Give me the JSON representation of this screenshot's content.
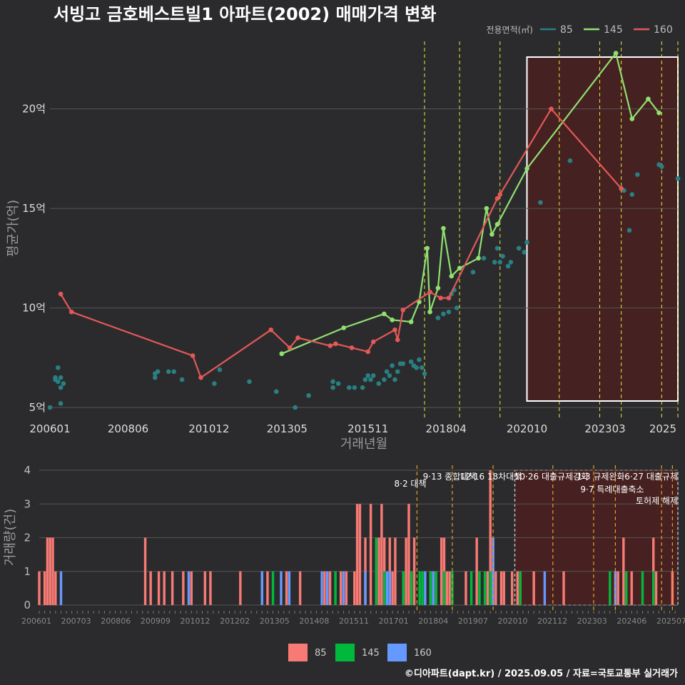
{
  "title": "서빙고 금호베스트빌1 아파트(2002) 매매가격 변화",
  "footer": "©디아파트(dapt.kr) / 2025.09.05 / 자료=국토교통부 실거래가",
  "colors": {
    "bg": "#2b2b2d",
    "grid": "#555555",
    "s85": "#2a7f82",
    "s145": "#90e070",
    "s160": "#e45858",
    "b85": "#f87a74",
    "b145": "#00b83c",
    "b160": "#6699ff",
    "vline": "#e8e83a",
    "vline2": "#e8a020",
    "region": "#4a2020"
  },
  "chart_data": [
    {
      "type": "line",
      "xlabel": "거래년월",
      "ylabel": "평균가(억)",
      "ylim": [
        4.5,
        23.5
      ],
      "xlim": [
        "2006-01",
        "2025-06"
      ],
      "y_ticks": [
        5,
        10,
        15,
        20
      ],
      "y_tick_labels": [
        "5억",
        "10억",
        "15억",
        "20억"
      ],
      "x_ticks": [
        "2006-01",
        "2008-06",
        "2010-12",
        "2013-05",
        "2015-11",
        "2018-04",
        "2020-10",
        "2023-03",
        "2025-08"
      ],
      "x_tick_labels": [
        "200601",
        "200806",
        "201012",
        "201305",
        "201511",
        "201804",
        "202010",
        "202303",
        "2025"
      ],
      "legend": {
        "title": "전용면적(㎡)",
        "position": "top-right",
        "entries": [
          "85",
          "145",
          "160"
        ]
      },
      "highlight_region": {
        "x_start": "2020-10",
        "x_end": "2025-06"
      },
      "event_lines": [
        "2017-08",
        "2018-09",
        "2019-12",
        "2021-10",
        "2023-01",
        "2023-09",
        "2024-12",
        "2025-06"
      ],
      "series": [
        {
          "name": "85",
          "mode": "points",
          "points": [
            [
              "2006-01",
              5.0
            ],
            [
              "2006-03",
              6.4
            ],
            [
              "2006-03",
              6.5
            ],
            [
              "2006-04",
              7.0
            ],
            [
              "2006-04",
              6.3
            ],
            [
              "2006-05",
              6.0
            ],
            [
              "2006-05",
              6.5
            ],
            [
              "2006-06",
              6.2
            ],
            [
              "2006-05",
              5.2
            ],
            [
              "2009-04",
              6.7
            ],
            [
              "2009-05",
              6.8
            ],
            [
              "2009-04",
              6.5
            ],
            [
              "2009-09",
              6.8
            ],
            [
              "2009-11",
              6.8
            ],
            [
              "2010-02",
              6.4
            ],
            [
              "2011-02",
              6.2
            ],
            [
              "2011-04",
              6.9
            ],
            [
              "2012-03",
              6.3
            ],
            [
              "2013-01",
              5.8
            ],
            [
              "2013-08",
              5.0
            ],
            [
              "2014-01",
              5.6
            ],
            [
              "2014-10",
              6.0
            ],
            [
              "2014-10",
              6.3
            ],
            [
              "2014-12",
              6.2
            ],
            [
              "2015-04",
              6.0
            ],
            [
              "2015-06",
              6.0
            ],
            [
              "2015-09",
              6.0
            ],
            [
              "2015-10",
              6.4
            ],
            [
              "2015-11",
              6.6
            ],
            [
              "2015-12",
              6.4
            ],
            [
              "2016-01",
              6.6
            ],
            [
              "2016-03",
              6.2
            ],
            [
              "2016-05",
              6.4
            ],
            [
              "2016-06",
              6.8
            ],
            [
              "2016-07",
              6.6
            ],
            [
              "2016-08",
              7.1
            ],
            [
              "2016-09",
              6.4
            ],
            [
              "2016-10",
              6.8
            ],
            [
              "2016-11",
              7.2
            ],
            [
              "2016-12",
              7.2
            ],
            [
              "2017-03",
              7.3
            ],
            [
              "2017-04",
              7.1
            ],
            [
              "2017-05",
              7.0
            ],
            [
              "2017-06",
              7.4
            ],
            [
              "2017-07",
              7.0
            ],
            [
              "2017-08",
              6.7
            ],
            [
              "2018-01",
              9.5
            ],
            [
              "2018-03",
              9.7
            ],
            [
              "2018-05",
              9.8
            ],
            [
              "2018-06",
              10.7
            ],
            [
              "2018-07",
              10.9
            ],
            [
              "2018-08",
              10.0
            ],
            [
              "2019-02",
              11.8
            ],
            [
              "2019-06",
              12.5
            ],
            [
              "2019-10",
              12.3
            ],
            [
              "2019-11",
              13.0
            ],
            [
              "2019-12",
              12.3
            ],
            [
              "2020-01",
              12.6
            ],
            [
              "2020-03",
              12.1
            ],
            [
              "2020-04",
              12.3
            ],
            [
              "2020-07",
              13.0
            ],
            [
              "2020-09",
              12.8
            ],
            [
              "2020-10",
              13.3
            ],
            [
              "2021-03",
              15.3
            ],
            [
              "2022-02",
              17.4
            ],
            [
              "2023-09",
              16.0
            ],
            [
              "2023-10",
              15.9
            ],
            [
              "2023-12",
              13.9
            ],
            [
              "2024-01",
              15.7
            ],
            [
              "2024-03",
              16.7
            ],
            [
              "2024-11",
              17.2
            ],
            [
              "2024-12",
              17.1
            ],
            [
              "2025-06",
              16.5
            ]
          ]
        },
        {
          "name": "145",
          "mode": "line",
          "points": [
            [
              "2013-03",
              7.7
            ],
            [
              "2015-02",
              9.0
            ],
            [
              "2016-05",
              9.7
            ],
            [
              "2016-08",
              9.4
            ],
            [
              "2017-03",
              9.3
            ],
            [
              "2017-06",
              10.3
            ],
            [
              "2017-09",
              13.0
            ],
            [
              "2017-10",
              9.8
            ],
            [
              "2018-01",
              11.0
            ],
            [
              "2018-03",
              14.0
            ],
            [
              "2018-06",
              11.6
            ],
            [
              "2018-09",
              12.0
            ],
            [
              "2019-04",
              12.5
            ],
            [
              "2019-07",
              15.0
            ],
            [
              "2019-09",
              13.7
            ],
            [
              "2019-11",
              14.2
            ],
            [
              "2020-10",
              17.0
            ],
            [
              "2023-07",
              22.8
            ],
            [
              "2024-01",
              19.5
            ],
            [
              "2024-07",
              20.5
            ],
            [
              "2024-11",
              19.8
            ]
          ]
        },
        {
          "name": "160",
          "mode": "line",
          "points": [
            [
              "2006-05",
              10.7
            ],
            [
              "2006-09",
              9.8
            ],
            [
              "2010-06",
              7.6
            ],
            [
              "2010-09",
              6.5
            ],
            [
              "2012-11",
              8.9
            ],
            [
              "2013-06",
              8.0
            ],
            [
              "2013-09",
              8.5
            ],
            [
              "2014-09",
              8.1
            ],
            [
              "2014-11",
              8.2
            ],
            [
              "2015-05",
              8.0
            ],
            [
              "2015-11",
              7.8
            ],
            [
              "2016-01",
              8.3
            ],
            [
              "2016-09",
              8.9
            ],
            [
              "2016-10",
              8.4
            ],
            [
              "2016-12",
              9.9
            ],
            [
              "2017-10",
              10.8
            ],
            [
              "2018-02",
              10.5
            ],
            [
              "2018-05",
              10.5
            ],
            [
              "2019-11",
              15.5
            ],
            [
              "2019-12",
              15.7
            ],
            [
              "2021-07",
              20.0
            ],
            [
              "2023-09",
              16.0
            ]
          ]
        }
      ]
    },
    {
      "type": "bar",
      "ylabel": "거래량(건)",
      "ylim": [
        0,
        4
      ],
      "y_ticks": [
        0,
        1,
        2,
        3,
        4
      ],
      "x_tick_labels": [
        "200601",
        "200703",
        "200806",
        "200909",
        "201012",
        "201202",
        "201305",
        "201408",
        "201511",
        "201701",
        "201804",
        "201907",
        "202010",
        "202112",
        "202303",
        "202406",
        "202507"
      ],
      "legend": {
        "position": "bottom",
        "entries": [
          "85",
          "145",
          "160"
        ]
      },
      "events": [
        {
          "date": "2017-08",
          "label": "8·2 대책"
        },
        {
          "date": "2018-09",
          "label": "9·13 종합대책"
        },
        {
          "date": "2019-12",
          "label": "12·16 18차대책"
        },
        {
          "date": "2021-10",
          "label": "10·26 대출규제강화"
        },
        {
          "date": "2023-01",
          "label": "1·3 규제완화"
        },
        {
          "date": "2023-09",
          "label": "9·7 특례대출축소"
        },
        {
          "date": "2025-06",
          "label": "6·27 대출규제"
        },
        {
          "date": "2025-02",
          "label": "토허제 해제"
        }
      ],
      "series": [
        {
          "name": "85",
          "bars": [
            [
              "2006-01",
              1
            ],
            [
              "2006-03",
              1
            ],
            [
              "2006-04",
              2
            ],
            [
              "2006-05",
              2
            ],
            [
              "2006-06",
              2
            ],
            [
              "2006-07",
              1
            ],
            [
              "2009-04",
              2
            ],
            [
              "2009-06",
              1
            ],
            [
              "2009-09",
              1
            ],
            [
              "2009-11",
              1
            ],
            [
              "2010-02",
              1
            ],
            [
              "2010-06",
              1
            ],
            [
              "2010-09",
              1
            ],
            [
              "2011-02",
              1
            ],
            [
              "2011-04",
              1
            ],
            [
              "2012-03",
              1
            ],
            [
              "2012-11",
              1
            ],
            [
              "2013-01",
              1
            ],
            [
              "2013-08",
              1
            ],
            [
              "2014-01",
              1
            ],
            [
              "2014-10",
              1
            ],
            [
              "2014-12",
              1
            ],
            [
              "2015-04",
              1
            ],
            [
              "2015-06",
              1
            ],
            [
              "2015-09",
              1
            ],
            [
              "2015-10",
              3
            ],
            [
              "2015-11",
              3
            ],
            [
              "2016-01",
              2
            ],
            [
              "2016-03",
              3
            ],
            [
              "2016-05",
              2
            ],
            [
              "2016-06",
              2
            ],
            [
              "2016-07",
              3
            ],
            [
              "2016-08",
              2
            ],
            [
              "2016-10",
              2
            ],
            [
              "2016-11",
              1
            ],
            [
              "2016-12",
              2
            ],
            [
              "2017-03",
              1
            ],
            [
              "2017-04",
              2
            ],
            [
              "2017-05",
              3
            ],
            [
              "2017-06",
              1
            ],
            [
              "2017-07",
              2
            ],
            [
              "2018-01",
              1
            ],
            [
              "2018-03",
              1
            ],
            [
              "2018-05",
              2
            ],
            [
              "2018-06",
              2
            ],
            [
              "2018-07",
              1
            ],
            [
              "2018-08",
              1
            ],
            [
              "2019-02",
              1
            ],
            [
              "2019-06",
              2
            ],
            [
              "2019-10",
              1
            ],
            [
              "2019-11",
              4
            ],
            [
              "2019-12",
              2
            ],
            [
              "2020-01",
              1
            ],
            [
              "2020-03",
              1
            ],
            [
              "2020-04",
              1
            ],
            [
              "2020-07",
              1
            ],
            [
              "2020-09",
              1
            ],
            [
              "2020-10",
              1
            ],
            [
              "2021-03",
              1
            ],
            [
              "2022-02",
              1
            ],
            [
              "2023-09",
              1
            ],
            [
              "2023-10",
              1
            ],
            [
              "2023-12",
              2
            ],
            [
              "2024-01",
              1
            ],
            [
              "2024-03",
              1
            ],
            [
              "2024-11",
              2
            ],
            [
              "2024-12",
              1
            ],
            [
              "2025-06",
              1
            ]
          ]
        },
        {
          "name": "145",
          "bars": [
            [
              "2013-03",
              1
            ],
            [
              "2015-02",
              1
            ],
            [
              "2016-05",
              2
            ],
            [
              "2016-08",
              1
            ],
            [
              "2017-03",
              1
            ],
            [
              "2017-06",
              1
            ],
            [
              "2017-09",
              1
            ],
            [
              "2017-10",
              1
            ],
            [
              "2018-01",
              1
            ],
            [
              "2018-03",
              1
            ],
            [
              "2018-06",
              1
            ],
            [
              "2018-09",
              1
            ],
            [
              "2019-04",
              1
            ],
            [
              "2019-07",
              1
            ],
            [
              "2019-09",
              1
            ],
            [
              "2019-11",
              1
            ],
            [
              "2020-10",
              1
            ],
            [
              "2023-07",
              1
            ],
            [
              "2024-01",
              1
            ],
            [
              "2024-07",
              1
            ],
            [
              "2024-11",
              1
            ]
          ]
        },
        {
          "name": "160",
          "bars": [
            [
              "2006-09",
              1
            ],
            [
              "2010-08",
              1
            ],
            [
              "2012-11",
              1
            ],
            [
              "2013-06",
              1
            ],
            [
              "2013-09",
              1
            ],
            [
              "2014-09",
              1
            ],
            [
              "2014-11",
              1
            ],
            [
              "2015-05",
              1
            ],
            [
              "2016-01",
              1
            ],
            [
              "2016-09",
              1
            ],
            [
              "2016-10",
              1
            ],
            [
              "2017-11",
              1
            ],
            [
              "2018-02",
              1
            ],
            [
              "2019-12",
              2
            ],
            [
              "2021-07",
              1
            ],
            [
              "2023-09",
              1
            ]
          ]
        }
      ]
    }
  ]
}
